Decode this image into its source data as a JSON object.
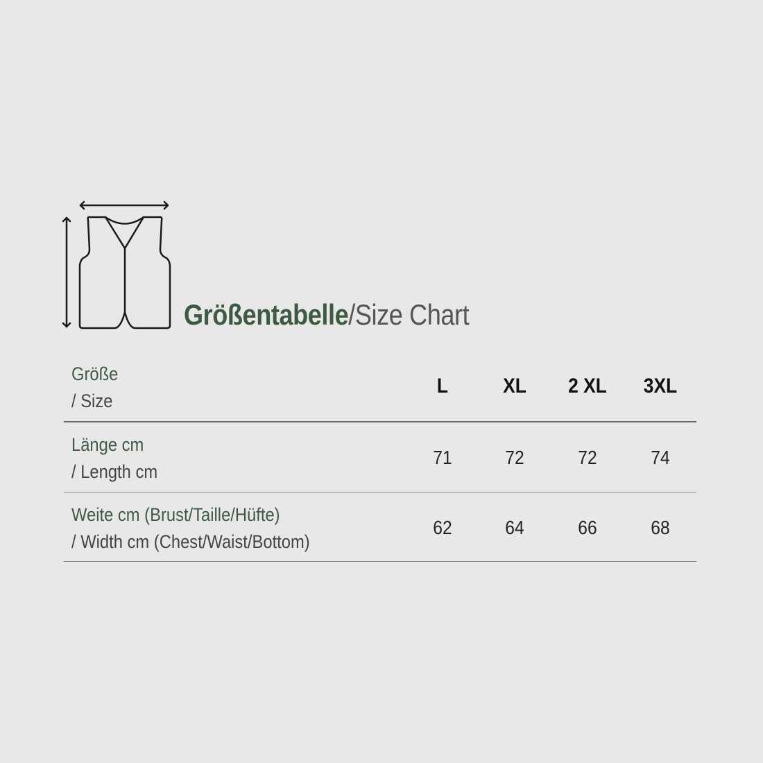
{
  "colors": {
    "green": "#3f5a42",
    "background": "#e8e8e8"
  },
  "icon": "vest-with-measurement-arrows-icon",
  "title": {
    "german": "Größentabelle",
    "separator": "/",
    "english": "Size Chart"
  },
  "table": {
    "header": {
      "label_de": "Größe",
      "label_en": "/ Size",
      "sizes": [
        "L",
        "XL",
        "2 XL",
        "3XL"
      ]
    },
    "rows": [
      {
        "label_de": "Länge cm",
        "label_en": "/ Length cm",
        "values": [
          "71",
          "72",
          "72",
          "74"
        ]
      },
      {
        "label_de": "Weite cm (Brust/Taille/Hüfte)",
        "label_en": "/ Width cm (Chest/Waist/Bottom)",
        "values": [
          "62",
          "64",
          "66",
          "68"
        ]
      }
    ]
  }
}
